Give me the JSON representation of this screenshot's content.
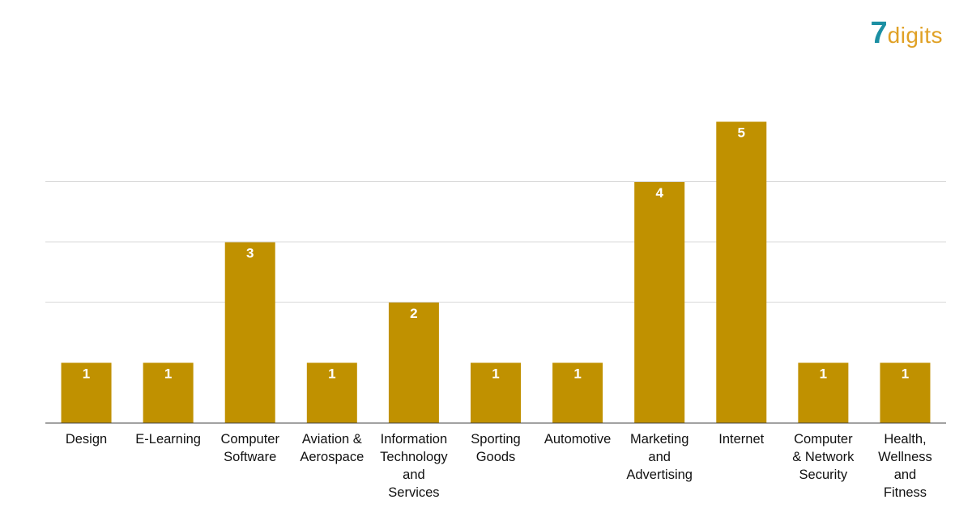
{
  "logo": {
    "digit": "7",
    "word": "digits",
    "digit_color": "#1b8fa3",
    "word_color": "#e0a126"
  },
  "colors": {
    "bar": "#c09100",
    "bar_label": "#ffffff",
    "grid": "#d9d9d9",
    "axis": "#444444"
  },
  "chart_data": {
    "type": "bar",
    "title": "",
    "xlabel": "",
    "ylabel": "",
    "ylim": [
      0,
      6
    ],
    "gridlines": [
      2,
      3,
      4
    ],
    "grid": true,
    "legend": "none",
    "categories": [
      "Design",
      "E-Learning",
      "Computer Software",
      "Aviation & Aerospace",
      "Information Technology and Services",
      "Sporting Goods",
      "Automotive",
      "Marketing and Advertising",
      "Internet",
      "Computer & Network Security",
      "Health, Wellness and Fitness"
    ],
    "category_lines": [
      [
        "Design"
      ],
      [
        "E-Learning"
      ],
      [
        "Computer",
        "Software"
      ],
      [
        "Aviation &",
        "Aerospace"
      ],
      [
        "Information",
        "Technology",
        "and",
        "Services"
      ],
      [
        "Sporting",
        "Goods"
      ],
      [
        "Automotive"
      ],
      [
        "Marketing",
        "and",
        "Advertising"
      ],
      [
        "Internet"
      ],
      [
        "Computer",
        "& Network",
        "Security"
      ],
      [
        "Health,",
        "Wellness",
        "and",
        "Fitness"
      ]
    ],
    "values": [
      1,
      1,
      3,
      1,
      2,
      1,
      1,
      4,
      5,
      1,
      1
    ]
  }
}
